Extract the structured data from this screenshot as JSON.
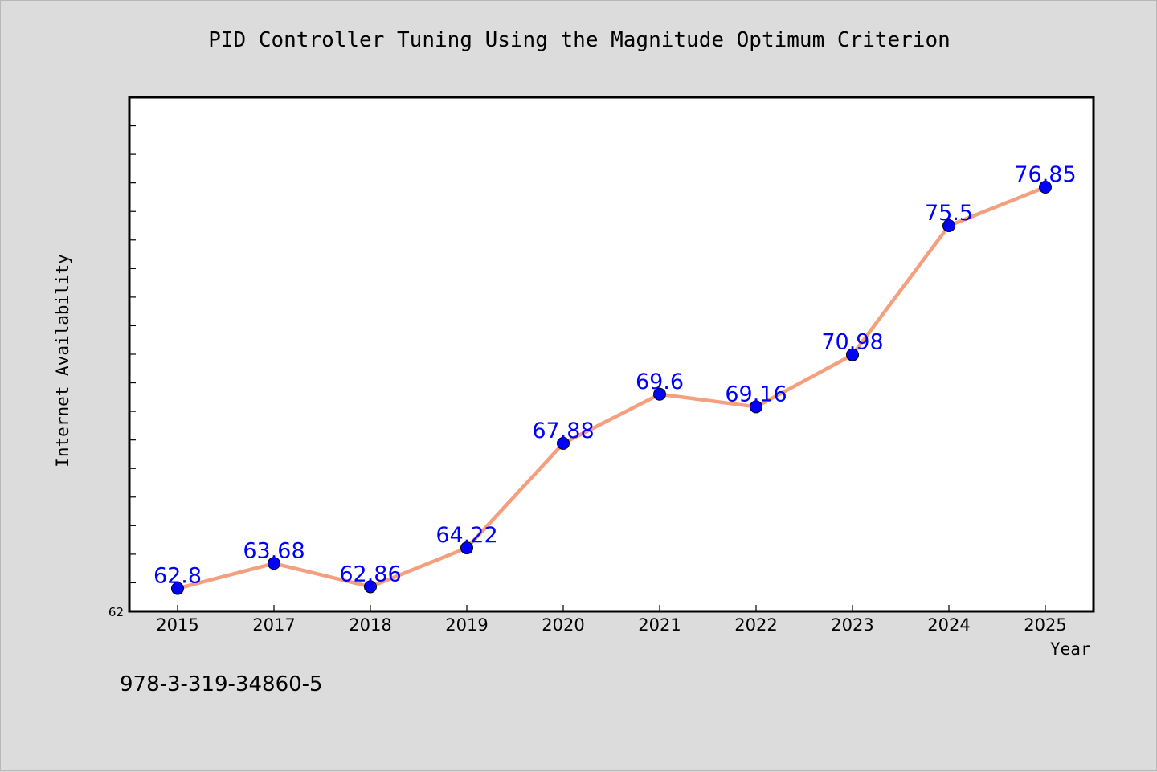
{
  "chart_data": {
    "type": "line",
    "title": "PID Controller Tuning Using the Magnitude Optimum Criterion",
    "xlabel": "Year",
    "ylabel": "Internet Availability",
    "categories": [
      "2015",
      "2017",
      "2018",
      "2019",
      "2020",
      "2021",
      "2022",
      "2023",
      "2024",
      "2025"
    ],
    "series": [
      {
        "values": [
          62.8,
          63.68,
          62.86,
          64.22,
          67.88,
          69.6,
          69.16,
          70.98,
          75.5,
          76.85
        ],
        "labels": [
          "62.8",
          "63.68",
          "62.86",
          "64.22",
          "67.88",
          "69.6",
          "69.16",
          "70.98",
          "75.5",
          "76.85"
        ]
      }
    ],
    "ylim": [
      62,
      80
    ],
    "y_tick_labels": [
      "62"
    ],
    "grid": false,
    "colors": {
      "line": "#f4a07e",
      "marker": "#0000ff",
      "label": "#0000ff",
      "background": "#dcdcdc",
      "plot_background": "#ffffff"
    }
  },
  "footnote": "978-3-319-34860-5"
}
